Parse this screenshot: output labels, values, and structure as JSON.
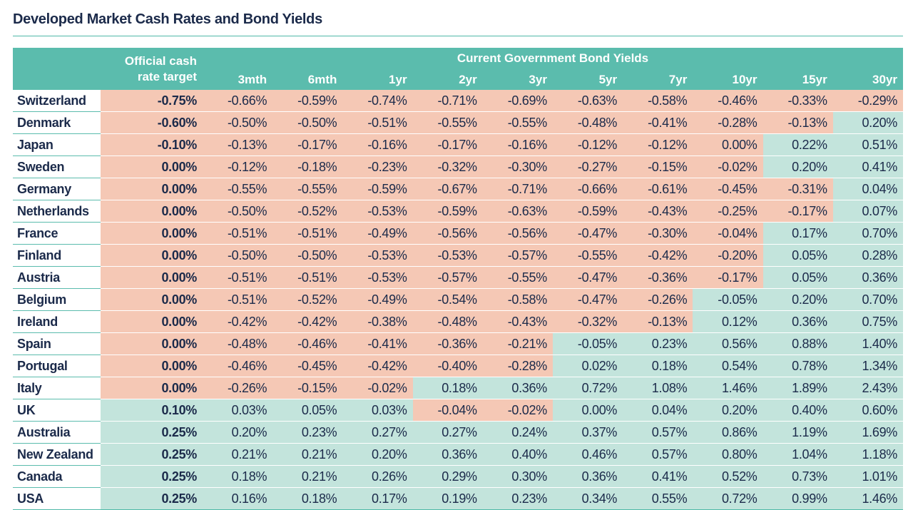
{
  "title": "Developed Market Cash Rates and Bond Yields",
  "header": {
    "cash_label_line1": "Official cash",
    "cash_label_line2": "rate target",
    "yields_label": "Current Government Bond Yields",
    "maturities": [
      "3mth",
      "6mth",
      "1yr",
      "2yr",
      "3yr",
      "5yr",
      "7yr",
      "10yr",
      "15yr",
      "30yr"
    ]
  },
  "colors": {
    "header_bg": "#5bbcad",
    "negative_bg": "#f5c8b5",
    "positive_bg": "#c3e4dc",
    "text": "#1b2a4a"
  },
  "chart_data": {
    "type": "table",
    "title": "Developed Market Cash Rates and Bond Yields",
    "unit": "%",
    "columns": [
      "Official cash rate target",
      "3mth",
      "6mth",
      "1yr",
      "2yr",
      "3yr",
      "5yr",
      "7yr",
      "10yr",
      "15yr",
      "30yr"
    ],
    "rows": [
      {
        "country": "Switzerland",
        "cash": -0.75,
        "yields": [
          -0.66,
          -0.59,
          -0.74,
          -0.71,
          -0.69,
          -0.63,
          -0.58,
          -0.46,
          -0.33,
          -0.29
        ]
      },
      {
        "country": "Denmark",
        "cash": -0.6,
        "yields": [
          -0.5,
          -0.5,
          -0.51,
          -0.55,
          -0.55,
          -0.48,
          -0.41,
          -0.28,
          -0.13,
          0.2
        ]
      },
      {
        "country": "Japan",
        "cash": -0.1,
        "yields": [
          -0.13,
          -0.17,
          -0.16,
          -0.17,
          -0.16,
          -0.12,
          -0.12,
          0.0,
          0.22,
          0.51
        ],
        "neg_zero_cols": [
          7
        ]
      },
      {
        "country": "Sweden",
        "cash": 0.0,
        "yields": [
          -0.12,
          -0.18,
          -0.23,
          -0.32,
          -0.3,
          -0.27,
          -0.15,
          -0.02,
          0.2,
          0.41
        ]
      },
      {
        "country": "Germany",
        "cash": 0.0,
        "yields": [
          -0.55,
          -0.55,
          -0.59,
          -0.67,
          -0.71,
          -0.66,
          -0.61,
          -0.45,
          -0.31,
          0.04
        ]
      },
      {
        "country": "Netherlands",
        "cash": 0.0,
        "yields": [
          -0.5,
          -0.52,
          -0.53,
          -0.59,
          -0.63,
          -0.59,
          -0.43,
          -0.25,
          -0.17,
          0.07
        ]
      },
      {
        "country": "France",
        "cash": 0.0,
        "yields": [
          -0.51,
          -0.51,
          -0.49,
          -0.56,
          -0.56,
          -0.47,
          -0.3,
          -0.04,
          0.17,
          0.7
        ]
      },
      {
        "country": "Finland",
        "cash": 0.0,
        "yields": [
          -0.5,
          -0.5,
          -0.53,
          -0.53,
          -0.57,
          -0.55,
          -0.42,
          -0.2,
          0.05,
          0.28
        ]
      },
      {
        "country": "Austria",
        "cash": 0.0,
        "yields": [
          -0.51,
          -0.51,
          -0.53,
          -0.57,
          -0.55,
          -0.47,
          -0.36,
          -0.17,
          0.05,
          0.36
        ]
      },
      {
        "country": "Belgium",
        "cash": 0.0,
        "yields": [
          -0.51,
          -0.52,
          -0.49,
          -0.54,
          -0.58,
          -0.47,
          -0.26,
          -0.05,
          0.2,
          0.7
        ],
        "pos_neg_cols": [
          7
        ]
      },
      {
        "country": "Ireland",
        "cash": 0.0,
        "yields": [
          -0.42,
          -0.42,
          -0.38,
          -0.48,
          -0.43,
          -0.32,
          -0.13,
          0.12,
          0.36,
          0.75
        ]
      },
      {
        "country": "Spain",
        "cash": 0.0,
        "yields": [
          -0.48,
          -0.46,
          -0.41,
          -0.36,
          -0.21,
          -0.05,
          0.23,
          0.56,
          0.88,
          1.4
        ],
        "pos_neg_cols": [
          5
        ]
      },
      {
        "country": "Portugal",
        "cash": 0.0,
        "yields": [
          -0.46,
          -0.45,
          -0.42,
          -0.4,
          -0.28,
          0.02,
          0.18,
          0.54,
          0.78,
          1.34
        ]
      },
      {
        "country": "Italy",
        "cash": 0.0,
        "yields": [
          -0.26,
          -0.15,
          -0.02,
          0.18,
          0.36,
          0.72,
          1.08,
          1.46,
          1.89,
          2.43
        ]
      },
      {
        "country": "UK",
        "cash": 0.1,
        "yields": [
          0.03,
          0.05,
          0.03,
          -0.04,
          -0.02,
          0.0,
          0.04,
          0.2,
          0.4,
          0.6
        ]
      },
      {
        "country": "Australia",
        "cash": 0.25,
        "yields": [
          0.2,
          0.23,
          0.27,
          0.27,
          0.24,
          0.37,
          0.57,
          0.86,
          1.19,
          1.69
        ]
      },
      {
        "country": "New Zealand",
        "cash": 0.25,
        "yields": [
          0.21,
          0.21,
          0.2,
          0.36,
          0.4,
          0.46,
          0.57,
          0.8,
          1.04,
          1.18
        ]
      },
      {
        "country": "Canada",
        "cash": 0.25,
        "yields": [
          0.18,
          0.21,
          0.26,
          0.29,
          0.3,
          0.36,
          0.41,
          0.52,
          0.73,
          1.01
        ]
      },
      {
        "country": "USA",
        "cash": 0.25,
        "yields": [
          0.16,
          0.18,
          0.17,
          0.19,
          0.23,
          0.34,
          0.55,
          0.72,
          0.99,
          1.46
        ]
      }
    ]
  }
}
